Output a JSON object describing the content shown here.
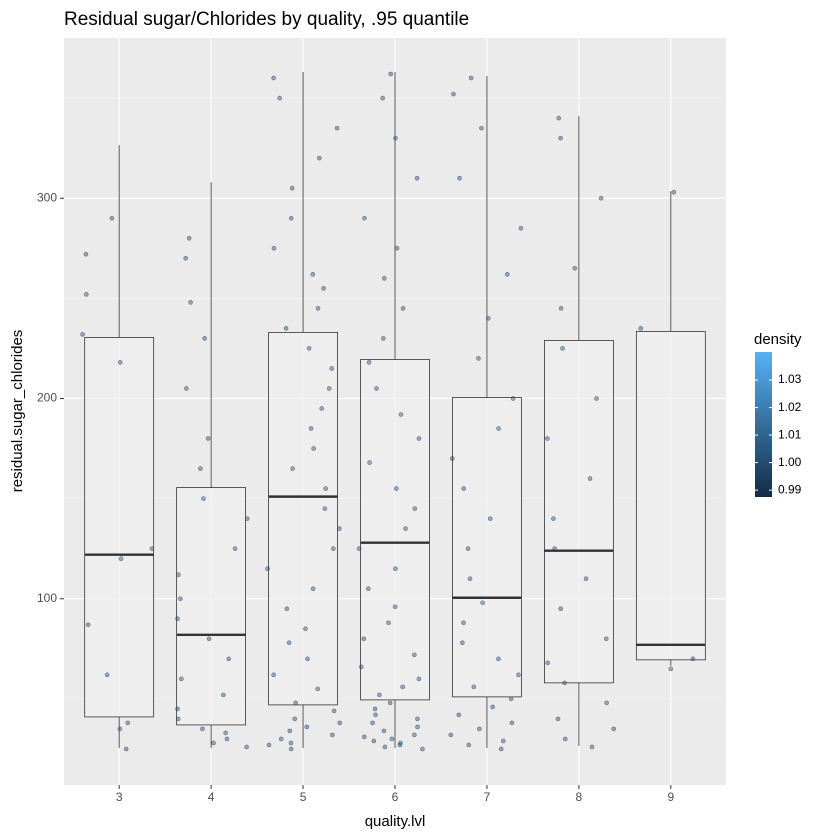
{
  "chart_data": {
    "type": "box",
    "title": "Residual sugar/Chlorides by quality, .95 quantile",
    "x_label": "quality.lvl",
    "y_label": "residual.sugar_chlorides",
    "categories": [
      "3",
      "4",
      "5",
      "6",
      "7",
      "8",
      "9"
    ],
    "boxes": [
      {
        "whislo": 25.5,
        "q1": 41,
        "med": 122,
        "q3": 230.5,
        "whishi": 326.5
      },
      {
        "whislo": 25.5,
        "q1": 37,
        "med": 82,
        "q3": 155.5,
        "whishi": 308
      },
      {
        "whislo": 25.5,
        "q1": 47,
        "med": 151,
        "q3": 233,
        "whishi": 363
      },
      {
        "whislo": 25.5,
        "q1": 49.5,
        "med": 128,
        "q3": 219.5,
        "whishi": 363
      },
      {
        "whislo": 25.5,
        "q1": 51,
        "med": 100.5,
        "q3": 200.5,
        "whishi": 361
      },
      {
        "whislo": 26.5,
        "q1": 58,
        "med": 124,
        "q3": 229,
        "whishi": 341
      },
      {
        "whislo": 66.5,
        "q1": 69.5,
        "med": 77,
        "q3": 233.5,
        "whishi": 303.5
      }
    ],
    "points": [
      [
        25,
        35,
        38,
        62,
        87,
        120,
        125,
        218,
        232,
        252,
        272,
        290
      ],
      [
        26,
        28,
        30,
        33,
        35,
        40,
        45,
        52,
        60,
        70,
        80,
        90,
        100,
        112,
        125,
        140,
        150,
        165,
        180,
        205,
        230,
        248,
        270,
        280
      ],
      [
        25,
        27,
        28,
        30,
        32,
        34,
        36,
        38,
        40,
        44,
        48,
        55,
        62,
        70,
        78,
        85,
        95,
        105,
        115,
        125,
        135,
        145,
        155,
        165,
        175,
        185,
        195,
        205,
        215,
        225,
        235,
        245,
        255,
        262,
        275,
        290,
        305,
        320,
        335,
        350,
        360
      ],
      [
        25,
        26,
        27,
        28,
        29,
        30,
        31,
        32,
        34,
        36,
        38,
        40,
        42,
        45,
        48,
        52,
        56,
        60,
        66,
        72,
        80,
        88,
        96,
        105,
        115,
        125,
        135,
        145,
        155,
        168,
        180,
        192,
        205,
        218,
        230,
        245,
        260,
        275,
        290,
        310,
        330,
        350,
        362
      ],
      [
        25,
        27,
        29,
        32,
        35,
        38,
        42,
        46,
        50,
        56,
        62,
        70,
        78,
        88,
        98,
        110,
        125,
        140,
        155,
        170,
        185,
        200,
        220,
        240,
        262,
        285,
        310,
        335,
        352,
        360
      ],
      [
        26,
        30,
        35,
        40,
        48,
        58,
        68,
        80,
        95,
        110,
        125,
        140,
        160,
        180,
        200,
        225,
        245,
        265,
        300,
        330,
        340
      ],
      [
        65,
        70,
        235,
        303
      ]
    ],
    "box_color": "#333333",
    "box_fill": "#efefef",
    "point_color": "#2e4e72",
    "ylim": [
      7,
      380
    ],
    "yticks": [
      100,
      200,
      300
    ],
    "yminor": [
      50,
      150,
      250,
      350
    ],
    "grid": true,
    "legend": {
      "title": "density",
      "ticks": [
        0.99,
        {
          "value": 1,
          "label": "1.00"
        },
        1.01,
        1.02,
        1.03
      ],
      "lim": [
        0.9875,
        1.0402
      ],
      "colors": [
        "#132b43",
        "#56b1f7"
      ]
    }
  }
}
